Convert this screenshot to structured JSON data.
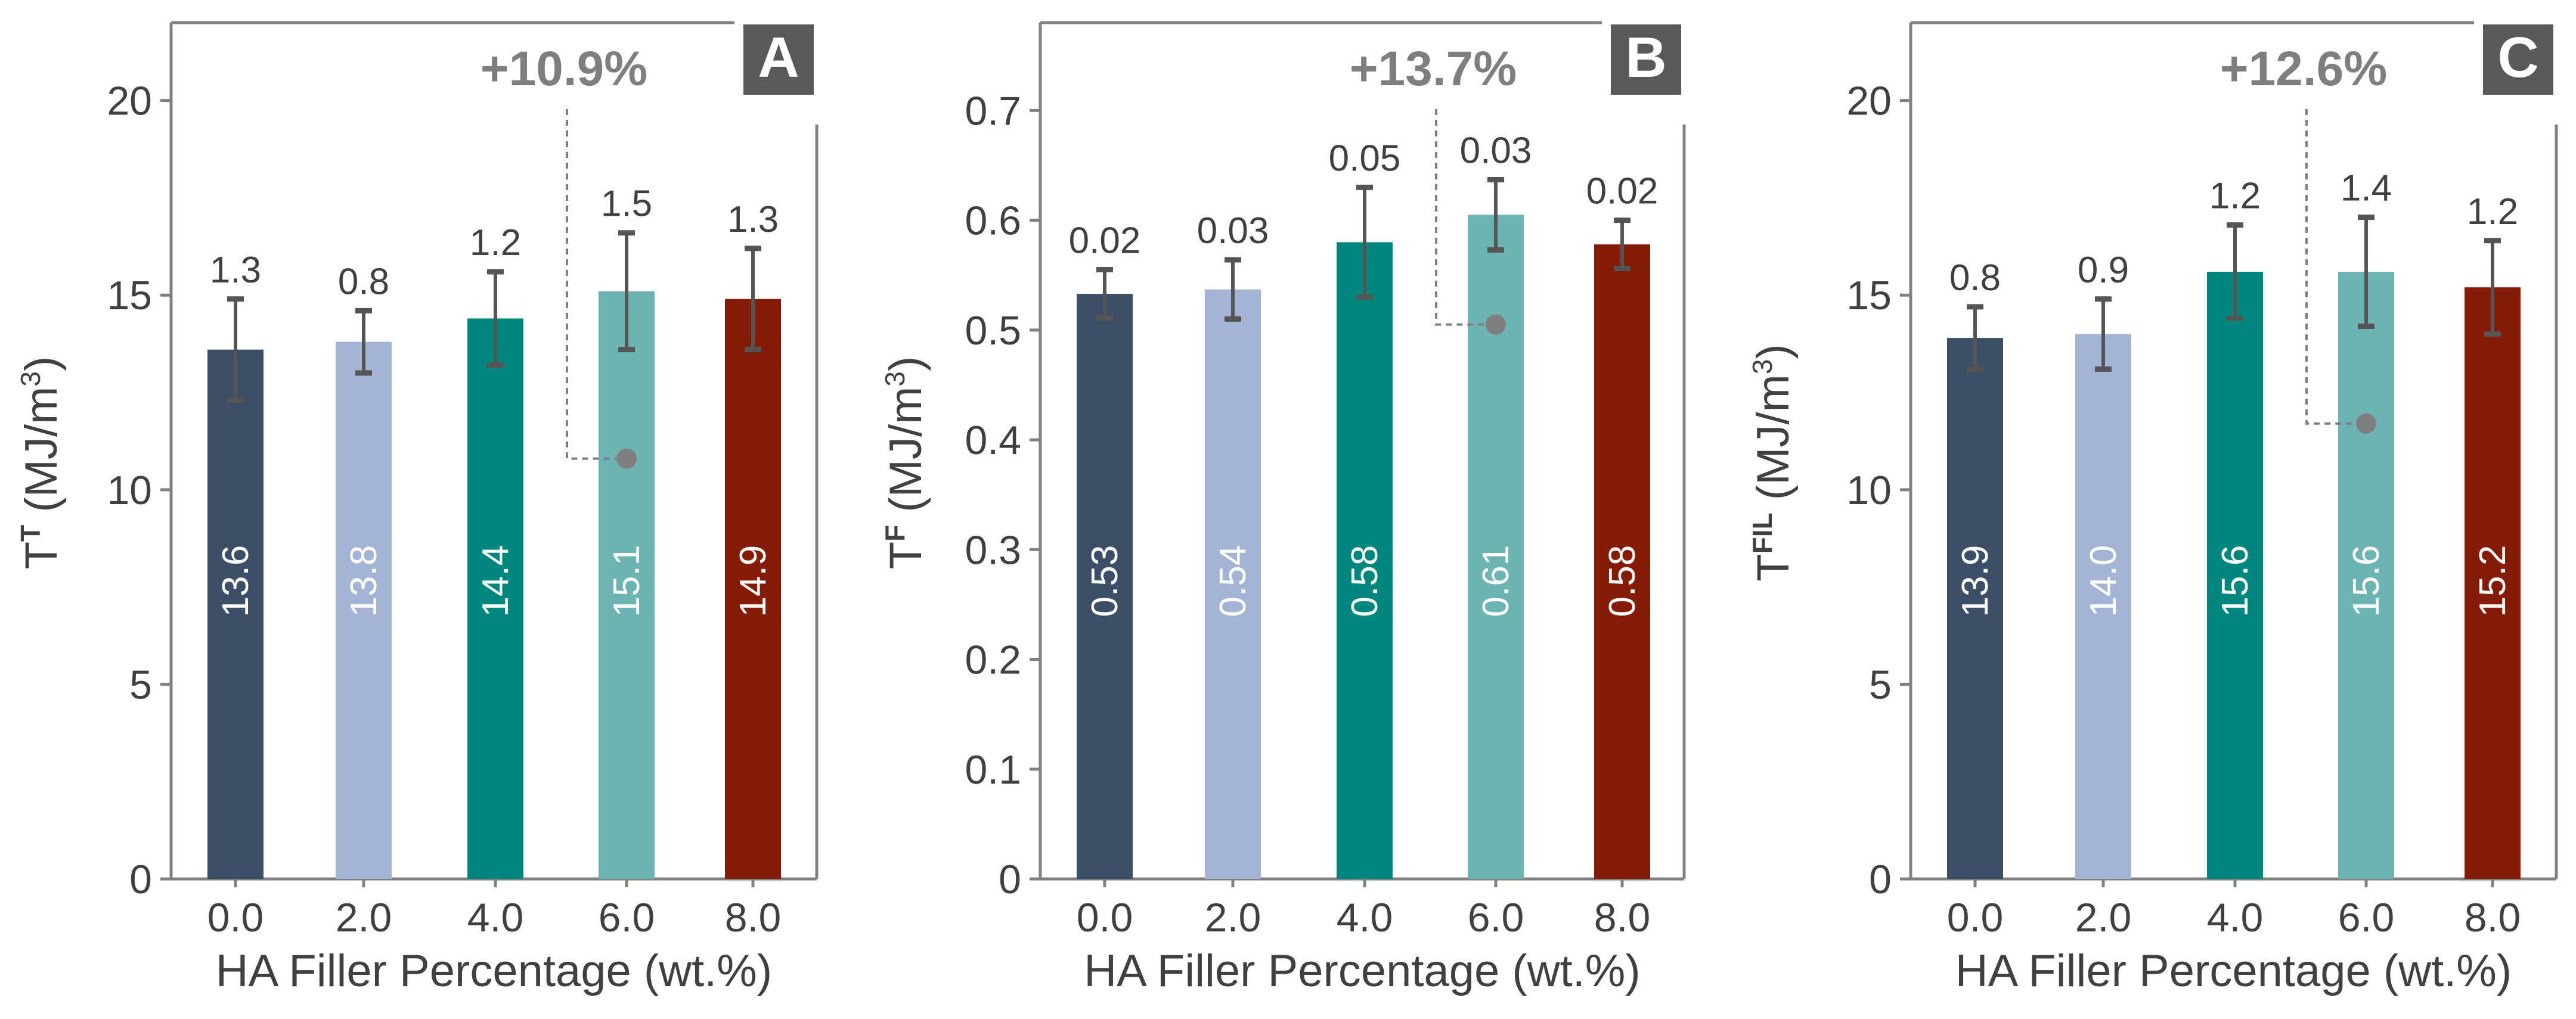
{
  "chart_data": [
    {
      "type": "bar",
      "panel_label": "A",
      "categories": [
        "0.0",
        "2.0",
        "4.0",
        "6.0",
        "8.0"
      ],
      "values": [
        13.6,
        13.8,
        14.4,
        15.1,
        14.9
      ],
      "value_labels": [
        "13.6",
        "13.8",
        "14.4",
        "15.1",
        "14.9"
      ],
      "errors": [
        1.3,
        0.8,
        1.2,
        1.5,
        1.3
      ],
      "error_labels": [
        "1.3",
        "0.8",
        "1.2",
        "1.5",
        "1.3"
      ],
      "bar_colors": [
        "#3d4f67",
        "#a3b4d5",
        "#00877d",
        "#6cb3b1",
        "#861c08"
      ],
      "ylim": [
        0,
        22
      ],
      "yticks": [
        0,
        5,
        10,
        15,
        20
      ],
      "ytick_labels": [
        "0",
        "5",
        "10",
        "15",
        "20"
      ],
      "ylabel_main": "T",
      "ylabel_sup": "T",
      "ylabel_unit": " (MJ/m",
      "ylabel_unit_sup": "3",
      "ylabel_close": ")",
      "xlabel": "HA Filler Percentage (wt.%)",
      "annotation": {
        "text": "+10.9%",
        "baseline_value": 10.8,
        "target_index": 3
      }
    },
    {
      "type": "bar",
      "panel_label": "B",
      "categories": [
        "0.0",
        "2.0",
        "4.0",
        "6.0",
        "8.0"
      ],
      "values": [
        0.533,
        0.537,
        0.58,
        0.605,
        0.578
      ],
      "value_labels": [
        "0.53",
        "0.54",
        "0.58",
        "0.61",
        "0.58"
      ],
      "errors": [
        0.022,
        0.027,
        0.05,
        0.032,
        0.022
      ],
      "error_labels": [
        "0.02",
        "0.03",
        "0.05",
        "0.03",
        "0.02"
      ],
      "bar_colors": [
        "#3d4f67",
        "#a3b4d5",
        "#00877d",
        "#6cb3b1",
        "#861c08"
      ],
      "ylim": [
        0,
        0.78
      ],
      "yticks": [
        0,
        0.1,
        0.2,
        0.3,
        0.4,
        0.5,
        0.6,
        0.7
      ],
      "ytick_labels": [
        "0",
        "0.1",
        "0.2",
        "0.3",
        "0.4",
        "0.5",
        "0.6",
        "0.7"
      ],
      "ylabel_main": "T",
      "ylabel_sup": "F",
      "ylabel_unit": " (MJ/m",
      "ylabel_unit_sup": "3",
      "ylabel_close": ")",
      "xlabel": "HA Filler Percentage (wt.%)",
      "annotation": {
        "text": "+13.7%",
        "baseline_value": 0.505,
        "target_index": 3
      }
    },
    {
      "type": "bar",
      "panel_label": "C",
      "categories": [
        "0.0",
        "2.0",
        "4.0",
        "6.0",
        "8.0"
      ],
      "values": [
        13.9,
        14.0,
        15.6,
        15.6,
        15.2
      ],
      "value_labels": [
        "13.9",
        "14.0",
        "15.6",
        "15.6",
        "15.2"
      ],
      "errors": [
        0.8,
        0.9,
        1.2,
        1.4,
        1.2
      ],
      "error_labels": [
        "0.8",
        "0.9",
        "1.2",
        "1.4",
        "1.2"
      ],
      "bar_colors": [
        "#3d4f67",
        "#a3b4d5",
        "#00877d",
        "#6cb3b1",
        "#861c08"
      ],
      "ylim": [
        0,
        22
      ],
      "yticks": [
        0,
        5,
        10,
        15,
        20
      ],
      "ytick_labels": [
        "0",
        "5",
        "10",
        "15",
        "20"
      ],
      "ylabel_main": "T",
      "ylabel_sup": "FIL",
      "ylabel_unit": " (MJ/m",
      "ylabel_unit_sup": "3",
      "ylabel_close": ")",
      "xlabel": "HA Filler Percentage (wt.%)",
      "annotation": {
        "text": "+12.6%",
        "baseline_value": 11.7,
        "target_index": 3
      }
    }
  ],
  "style": {
    "axis_color": "#808080",
    "text_color": "#404040",
    "annotation_color": "#7f7f7f",
    "label_box_color": "#595959",
    "label_text_color": "#ffffff",
    "errorbar_color": "#555555",
    "bar_label_color": "#ffffff"
  }
}
